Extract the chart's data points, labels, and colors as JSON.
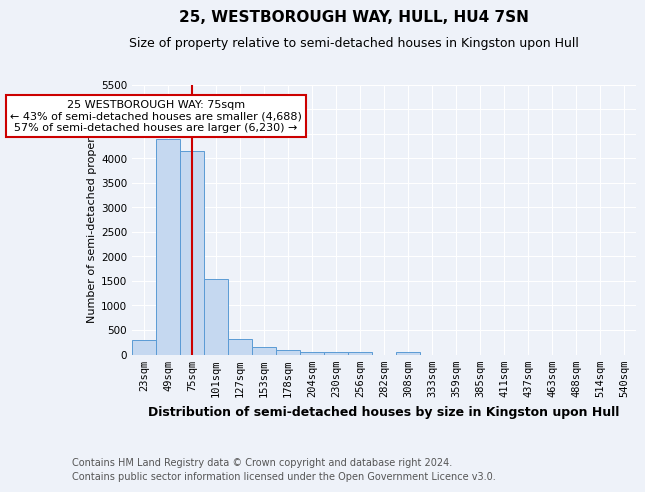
{
  "title": "25, WESTBOROUGH WAY, HULL, HU4 7SN",
  "subtitle": "Size of property relative to semi-detached houses in Kingston upon Hull",
  "xlabel": "Distribution of semi-detached houses by size in Kingston upon Hull",
  "ylabel": "Number of semi-detached properties",
  "footer1": "Contains HM Land Registry data © Crown copyright and database right 2024.",
  "footer2": "Contains public sector information licensed under the Open Government Licence v3.0.",
  "categories": [
    "23sqm",
    "49sqm",
    "75sqm",
    "101sqm",
    "127sqm",
    "153sqm",
    "178sqm",
    "204sqm",
    "230sqm",
    "256sqm",
    "282sqm",
    "308sqm",
    "333sqm",
    "359sqm",
    "385sqm",
    "411sqm",
    "437sqm",
    "463sqm",
    "488sqm",
    "514sqm",
    "540sqm"
  ],
  "values": [
    290,
    4380,
    4140,
    1530,
    315,
    155,
    90,
    55,
    50,
    50,
    0,
    60,
    0,
    0,
    0,
    0,
    0,
    0,
    0,
    0,
    0
  ],
  "bar_color": "#c5d8f0",
  "bar_edge_color": "#5b9bd5",
  "red_line_index": 2,
  "annotation_text": "25 WESTBOROUGH WAY: 75sqm\n← 43% of semi-detached houses are smaller (4,688)\n57% of semi-detached houses are larger (6,230) →",
  "annotation_box_color": "#ffffff",
  "annotation_border_color": "#cc0000",
  "ylim": [
    0,
    5500
  ],
  "yticks": [
    0,
    500,
    1000,
    1500,
    2000,
    2500,
    3000,
    3500,
    4000,
    4500,
    5000,
    5500
  ],
  "background_color": "#eef2f9",
  "plot_bg_color": "#eef2f9",
  "grid_color": "#ffffff",
  "title_fontsize": 11,
  "subtitle_fontsize": 9,
  "annot_fontsize": 8,
  "red_line_color": "#cc0000",
  "ylabel_fontsize": 8,
  "xlabel_fontsize": 9,
  "footer_fontsize": 7,
  "tick_fontsize": 7.5
}
